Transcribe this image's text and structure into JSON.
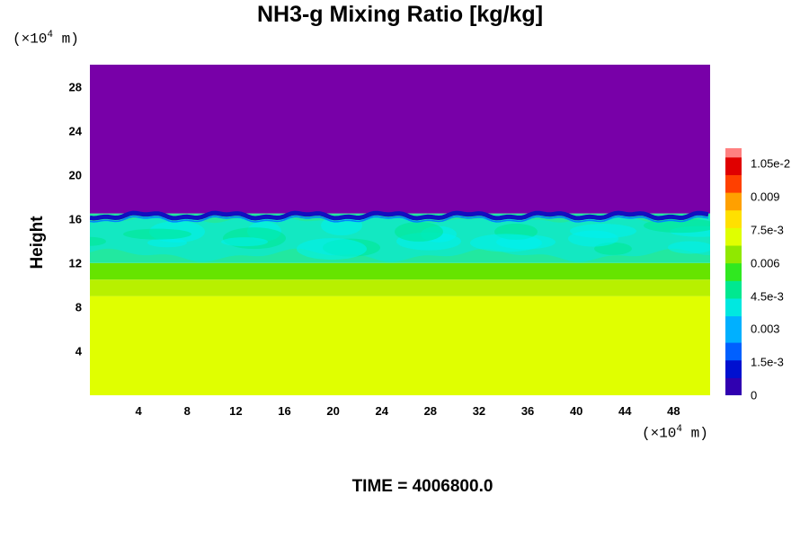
{
  "chart_data": {
    "type": "heatmap",
    "title": "NH3-g Mixing Ratio [kg/kg]",
    "ylabel": "Height",
    "xlabel": "",
    "x_unit_prefix": "(×10",
    "x_unit_exp": "4",
    "x_unit_suffix": " m)",
    "y_unit_prefix": "(×10",
    "y_unit_exp": "4",
    "y_unit_suffix": " m)",
    "xlim": [
      0,
      51
    ],
    "ylim": [
      0,
      30
    ],
    "x_ticks": [
      "4",
      "8",
      "12",
      "16",
      "20",
      "24",
      "28",
      "32",
      "36",
      "40",
      "44",
      "48"
    ],
    "y_ticks": [
      "4",
      "8",
      "12",
      "16",
      "20",
      "24",
      "28"
    ],
    "colorbar": {
      "range": [
        0,
        0.0112
      ],
      "tick_labels": [
        "0",
        "1.5e-3",
        "0.003",
        "4.5e-3",
        "0.006",
        "7.5e-3",
        "0.009",
        "1.05e-2"
      ],
      "tick_values": [
        0,
        0.0015,
        0.003,
        0.0045,
        0.006,
        0.0075,
        0.009,
        0.0105
      ]
    },
    "field_layers": [
      {
        "height_range": [
          0,
          9
        ],
        "value": 0.0077,
        "description_color": "#e0ff00"
      },
      {
        "height_range": [
          9,
          10.5
        ],
        "value": 0.0068,
        "description_color": "#b8f000"
      },
      {
        "height_range": [
          10.5,
          12
        ],
        "value": 0.0062,
        "description_color": "#66e400"
      },
      {
        "height_range": [
          12,
          16.5
        ],
        "value": 0.0048,
        "description_color": "#22e8a0"
      },
      {
        "height_range": [
          16.5,
          30
        ],
        "value": 0.0,
        "description_color": "#7800a8"
      }
    ],
    "grid": false,
    "footer": "TIME = 4006800.0"
  }
}
